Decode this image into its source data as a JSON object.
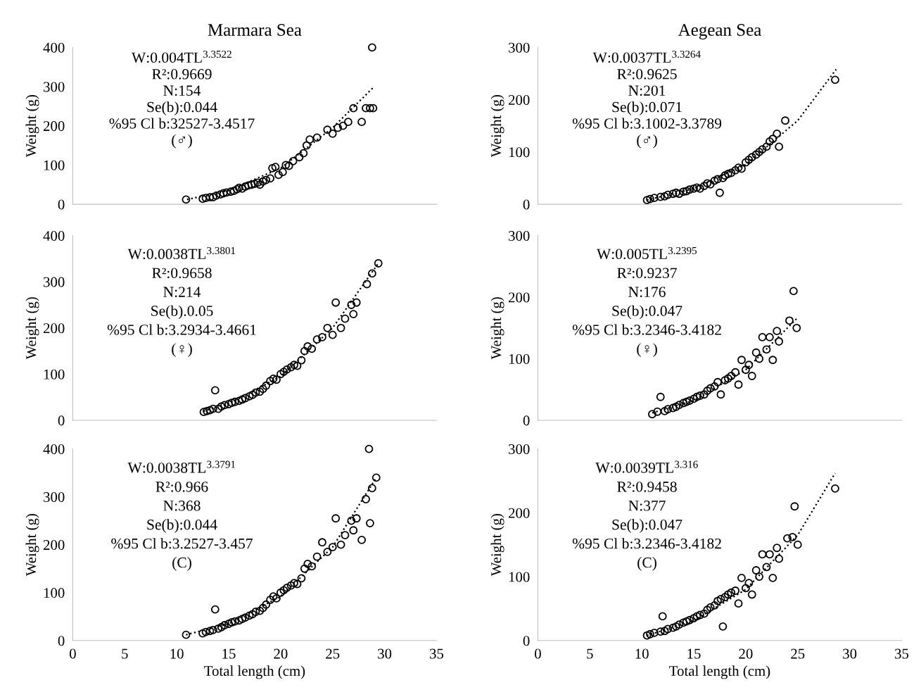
{
  "chart_data": [
    {
      "type": "scatter",
      "title": "Marmara Sea",
      "ylabel": "Weight (g)",
      "xlim": [
        0,
        35
      ],
      "ylim": [
        0,
        400
      ],
      "xticks": [
        0,
        5,
        10,
        15,
        20,
        25,
        30,
        35
      ],
      "yticks": [
        0,
        100,
        200,
        300,
        400
      ],
      "tick_labels": "y",
      "annotations": [
        "W:0.004TL$^{3.3522}$",
        "R²:0.9669",
        "N:154",
        "Se(b):0.044",
        "%95 Cl b:32527-3.4517",
        "(♂)"
      ],
      "series": [
        {
          "color": "#000000",
          "marker": "circle",
          "x": [
            10.9,
            12.5,
            12.8,
            13.2,
            13.5,
            13.8,
            14.2,
            14.5,
            14.8,
            15.2,
            15.5,
            15.8,
            16.0,
            16.3,
            16.6,
            16.9,
            17.2,
            17.5,
            17.8,
            18.0,
            18.3,
            18.6,
            19.0,
            19.2,
            19.5,
            19.8,
            20.2,
            20.5,
            20.8,
            21.2,
            21.8,
            22.2,
            22.5,
            22.8,
            23.5,
            24.5,
            25.0,
            25.5,
            26.0,
            26.5,
            27.0,
            27.8,
            28.2,
            28.6,
            28.8,
            28.9
          ],
          "values": [
            12,
            14,
            16,
            18,
            18,
            22,
            25,
            28,
            30,
            32,
            34,
            38,
            42,
            40,
            45,
            48,
            50,
            52,
            55,
            50,
            58,
            62,
            66,
            92,
            95,
            75,
            82,
            100,
            98,
            110,
            120,
            130,
            150,
            165,
            170,
            190,
            180,
            195,
            200,
            210,
            245,
            210,
            245,
            245,
            400,
            245
          ]
        },
        {
          "type": "line",
          "color": "#000000",
          "line_style": "dotted",
          "x": [
            11,
            15,
            20,
            25,
            29
          ],
          "values": [
            12,
            35,
            92,
            195,
            300
          ]
        }
      ]
    },
    {
      "type": "scatter",
      "title": "Aegean Sea",
      "ylabel": "Weight (g)",
      "xlim": [
        0,
        35
      ],
      "ylim": [
        0,
        300
      ],
      "xticks": [
        0,
        5,
        10,
        15,
        20,
        25,
        30,
        35
      ],
      "yticks": [
        0,
        100,
        200,
        300
      ],
      "tick_labels": "y",
      "annotations": [
        "W:0.0037TL$^{3.3264}$",
        "R²:0.9625",
        "N:201",
        "Se(b):0.071",
        "%95 Cl b:3.1002-3.3789",
        "(♂)"
      ],
      "series": [
        {
          "color": "#000000",
          "marker": "circle",
          "x": [
            10.5,
            10.8,
            11.2,
            11.8,
            12.2,
            12.5,
            13.0,
            13.3,
            13.6,
            14.0,
            14.3,
            14.6,
            15.0,
            15.3,
            15.6,
            16.0,
            16.3,
            16.6,
            17.0,
            17.3,
            17.5,
            17.8,
            18.0,
            18.3,
            18.6,
            19.0,
            19.3,
            19.6,
            20.0,
            20.3,
            20.6,
            21.0,
            21.3,
            21.6,
            22.0,
            22.3,
            22.6,
            23.0,
            23.2,
            23.8,
            28.6
          ],
          "values": [
            8,
            10,
            12,
            14,
            15,
            18,
            20,
            22,
            20,
            24,
            25,
            28,
            30,
            32,
            30,
            35,
            40,
            38,
            45,
            48,
            22,
            50,
            55,
            58,
            60,
            65,
            70,
            68,
            80,
            85,
            90,
            95,
            100,
            105,
            110,
            120,
            125,
            135,
            110,
            160,
            238
          ]
        },
        {
          "type": "line",
          "color": "#000000",
          "line_style": "dotted",
          "x": [
            10.5,
            15,
            20,
            25,
            28.7
          ],
          "values": [
            8,
            30,
            76,
            160,
            258
          ]
        }
      ]
    },
    {
      "type": "scatter",
      "ylabel": "Weight (g)",
      "xlim": [
        0,
        35
      ],
      "ylim": [
        0,
        400
      ],
      "xticks": [
        0,
        5,
        10,
        15,
        20,
        25,
        30,
        35
      ],
      "yticks": [
        0,
        100,
        200,
        300,
        400
      ],
      "tick_labels": "y",
      "annotations": [
        "W:0.0038TL$^{3.3801}$",
        "R²:0.9658",
        "N:214",
        "Se(b).0.05",
        "%95 Cl b:3.2934-3.4661",
        "(♀)"
      ],
      "series": [
        {
          "color": "#000000",
          "marker": "circle",
          "x": [
            12.6,
            12.9,
            13.2,
            13.5,
            13.7,
            14.0,
            14.3,
            14.6,
            15.0,
            15.3,
            15.6,
            16.0,
            16.3,
            16.6,
            17.0,
            17.3,
            17.6,
            18.0,
            18.3,
            18.6,
            19.0,
            19.3,
            19.6,
            20.0,
            20.3,
            20.6,
            21.0,
            21.3,
            21.6,
            22.0,
            22.3,
            22.6,
            23.0,
            23.5,
            24.0,
            24.5,
            25.0,
            25.3,
            25.8,
            26.2,
            26.8,
            27.0,
            27.3,
            28.3,
            28.8,
            29.4
          ],
          "values": [
            18,
            20,
            22,
            25,
            65,
            25,
            30,
            33,
            35,
            38,
            40,
            42,
            45,
            48,
            52,
            55,
            60,
            62,
            68,
            75,
            85,
            90,
            88,
            100,
            105,
            110,
            115,
            120,
            118,
            130,
            150,
            160,
            155,
            175,
            180,
            200,
            185,
            255,
            200,
            220,
            250,
            230,
            255,
            295,
            318,
            340
          ]
        },
        {
          "type": "line",
          "color": "#000000",
          "line_style": "dotted",
          "x": [
            12.6,
            15,
            20,
            25,
            29.4
          ],
          "values": [
            20,
            36,
            95,
            200,
            340
          ]
        }
      ]
    },
    {
      "type": "scatter",
      "ylabel": "Weight (g)",
      "xlim": [
        0,
        35
      ],
      "ylim": [
        0,
        300
      ],
      "xticks": [
        0,
        5,
        10,
        15,
        20,
        25,
        30,
        35
      ],
      "yticks": [
        0,
        100,
        200,
        300
      ],
      "tick_labels": "y",
      "annotations": [
        "W:0.005TL$^{3.2395}$",
        "R²:0.9237",
        "N:176",
        "Se(b):0.047",
        "%95 Cl b:3.2346-3.4182",
        "(♀)"
      ],
      "series": [
        {
          "color": "#000000",
          "marker": "circle",
          "x": [
            11.0,
            11.5,
            11.8,
            12.2,
            12.5,
            13.0,
            13.3,
            13.6,
            14.0,
            14.3,
            14.6,
            15.0,
            15.3,
            15.6,
            16.0,
            16.3,
            16.6,
            17.0,
            17.3,
            17.6,
            18.0,
            18.3,
            18.6,
            19.0,
            19.3,
            19.6,
            20.0,
            20.3,
            20.6,
            21.0,
            21.3,
            21.6,
            22.0,
            22.3,
            22.6,
            23.0,
            23.2,
            24.2,
            24.6,
            24.9
          ],
          "values": [
            10,
            14,
            38,
            15,
            18,
            20,
            22,
            25,
            28,
            30,
            32,
            35,
            38,
            40,
            42,
            48,
            52,
            55,
            62,
            42,
            65,
            68,
            72,
            78,
            58,
            98,
            82,
            90,
            72,
            110,
            100,
            135,
            115,
            135,
            98,
            145,
            128,
            162,
            210,
            150
          ]
        },
        {
          "type": "line",
          "color": "#000000",
          "line_style": "dotted",
          "x": [
            11,
            15,
            20,
            24.9
          ],
          "values": [
            12,
            32,
            82,
            165
          ]
        }
      ]
    },
    {
      "type": "scatter",
      "xlabel": "Total length (cm)",
      "ylabel": "Weight (g)",
      "xlim": [
        0,
        35
      ],
      "ylim": [
        0,
        400
      ],
      "xticks": [
        0,
        5,
        10,
        15,
        20,
        25,
        30,
        35
      ],
      "yticks": [
        0,
        100,
        200,
        300,
        400
      ],
      "annotations": [
        "W:0.0038TL$^{3.3791}$",
        "R²:0.966",
        "N:368",
        "Se(b):0.044",
        "%95 Cl b:3.2527-3.457",
        "(C)"
      ],
      "series": [
        {
          "color": "#000000",
          "marker": "circle",
          "x": [
            10.9,
            12.5,
            12.8,
            13.2,
            13.5,
            13.7,
            14.0,
            14.3,
            14.6,
            15.0,
            15.3,
            15.6,
            16.0,
            16.3,
            16.6,
            17.0,
            17.3,
            17.6,
            18.0,
            18.3,
            18.6,
            19.0,
            19.3,
            19.6,
            20.0,
            20.3,
            20.6,
            21.0,
            21.3,
            21.6,
            22.0,
            22.3,
            22.6,
            23.0,
            23.5,
            24.0,
            24.5,
            25.0,
            25.3,
            25.8,
            26.2,
            26.8,
            27.0,
            27.3,
            27.8,
            28.2,
            28.5,
            28.8,
            29.2,
            28.6
          ],
          "values": [
            12,
            15,
            18,
            20,
            22,
            65,
            25,
            28,
            32,
            35,
            38,
            40,
            42,
            45,
            48,
            52,
            55,
            60,
            62,
            68,
            75,
            85,
            92,
            88,
            100,
            105,
            110,
            115,
            120,
            118,
            130,
            150,
            160,
            155,
            175,
            205,
            185,
            195,
            255,
            200,
            220,
            250,
            230,
            255,
            210,
            295,
            400,
            318,
            340,
            245
          ]
        },
        {
          "type": "line",
          "color": "#000000",
          "line_style": "dotted",
          "x": [
            10.9,
            15,
            20,
            25,
            29.2
          ],
          "values": [
            12,
            35,
            92,
            195,
            340
          ]
        }
      ]
    },
    {
      "type": "scatter",
      "xlabel": "Total length (cm)",
      "ylabel": "Weight (g)",
      "xlim": [
        0,
        35
      ],
      "ylim": [
        0,
        300
      ],
      "xticks": [
        0,
        5,
        10,
        15,
        20,
        25,
        30,
        35
      ],
      "yticks": [
        0,
        100,
        200,
        300
      ],
      "annotations": [
        "W:0.0039TL$^{3.316}$",
        "R²:0.9458",
        "N:377",
        "Se(b):0.047",
        "%95 Cl b:3.2346-3.4182",
        "(C)"
      ],
      "series": [
        {
          "color": "#000000",
          "marker": "circle",
          "x": [
            10.5,
            10.8,
            11.2,
            11.8,
            12.0,
            12.2,
            12.5,
            13.0,
            13.3,
            13.6,
            14.0,
            14.3,
            14.6,
            15.0,
            15.3,
            15.6,
            16.0,
            16.3,
            16.6,
            17.0,
            17.3,
            17.6,
            17.8,
            18.0,
            18.3,
            18.6,
            19.0,
            19.3,
            19.6,
            20.0,
            20.3,
            20.6,
            21.0,
            21.3,
            21.6,
            22.0,
            22.3,
            22.6,
            23.0,
            23.2,
            24.0,
            24.5,
            24.7,
            25.0,
            28.6
          ],
          "values": [
            8,
            10,
            12,
            14,
            38,
            15,
            18,
            20,
            22,
            25,
            28,
            30,
            32,
            35,
            38,
            40,
            42,
            48,
            52,
            55,
            62,
            65,
            22,
            68,
            72,
            75,
            78,
            58,
            98,
            82,
            90,
            72,
            110,
            100,
            135,
            115,
            135,
            98,
            145,
            128,
            160,
            162,
            210,
            150,
            238
          ]
        },
        {
          "type": "line",
          "color": "#000000",
          "line_style": "dotted",
          "x": [
            10.5,
            15,
            20,
            25,
            28.6
          ],
          "values": [
            8,
            31,
            80,
            165,
            262
          ]
        }
      ]
    }
  ]
}
